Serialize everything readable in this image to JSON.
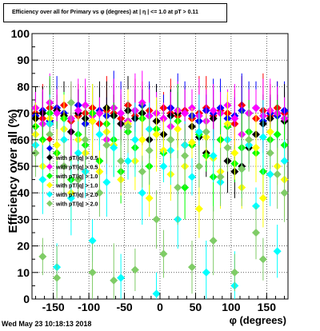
{
  "header": {
    "title": "Efficiency over all for Primary vs φ (degrees) at | η | <= 1.0 at pT > 0.11"
  },
  "footer": {
    "timestamp": "Wed May 23 10:18:13 2018"
  },
  "chart_data": {
    "type": "scatter",
    "title": "Efficiency over all for Primary vs φ (degrees) at | η | <= 1.0 at pT > 0.11",
    "xlabel": "φ (degrees)",
    "ylabel": "Efficiency over all (%)",
    "xlim": [
      -180,
      180
    ],
    "ylim": [
      0,
      100
    ],
    "xticks": [
      -150,
      -100,
      -50,
      0,
      50,
      100,
      150
    ],
    "yticks": [
      0,
      10,
      20,
      30,
      40,
      50,
      60,
      70,
      80,
      90,
      100
    ],
    "grid": true,
    "legend_position": "center-left",
    "legend_labels": [
      "",
      "",
      "with pT/|q| > 0.5",
      "with pT/|q| > 0.5",
      "with pT/|q| > 1.0",
      "with pT/|q| > 1.0",
      "with pT/|q| > 2.0",
      "with pT/|q| > 2.0"
    ],
    "series": [
      {
        "color": "#ff0000",
        "values": [
          70,
          68,
          72,
          71,
          73,
          67,
          69,
          70,
          72,
          66,
          71,
          70,
          68,
          73,
          69,
          70,
          71,
          67,
          72,
          70,
          69,
          71,
          68,
          70,
          72,
          69,
          71,
          70,
          66,
          73,
          70,
          68,
          71,
          69,
          72,
          70
        ]
      },
      {
        "color": "#0000ff",
        "values": [
          69,
          71,
          67,
          72,
          70,
          68,
          73,
          66,
          70,
          71,
          69,
          72,
          70,
          67,
          71,
          73,
          69,
          70,
          68,
          72,
          71,
          70,
          69,
          67,
          71,
          70,
          72,
          68,
          69,
          71,
          70,
          72,
          67,
          70,
          69,
          71
        ]
      },
      {
        "color": "#000000",
        "values": [
          68,
          70,
          66,
          71,
          69,
          63,
          70,
          68,
          67,
          70,
          72,
          69,
          66,
          71,
          68,
          70,
          60,
          67,
          62,
          69,
          70,
          58,
          65,
          61,
          55,
          68,
          60,
          52,
          48,
          50,
          57,
          62,
          66,
          68,
          70,
          67
        ]
      },
      {
        "color": "#ff00ff",
        "values": [
          72,
          66,
          74,
          70,
          50,
          68,
          71,
          73,
          69,
          70,
          60,
          72,
          70,
          67,
          71,
          74,
          69,
          70,
          68,
          65,
          71,
          70,
          72,
          69,
          67,
          71,
          70,
          73,
          68,
          62,
          70,
          72,
          69,
          71,
          70,
          68
        ]
      },
      {
        "color": "#00ff00",
        "values": [
          65,
          60,
          70,
          55,
          68,
          45,
          62,
          58,
          70,
          52,
          66,
          60,
          48,
          63,
          57,
          68,
          50,
          64,
          55,
          60,
          67,
          42,
          58,
          62,
          54,
          46,
          60,
          65,
          51,
          57,
          63,
          55,
          48,
          60,
          62,
          58
        ]
      },
      {
        "color": "#ffff00",
        "values": [
          62,
          50,
          68,
          58,
          64,
          40,
          60,
          55,
          67,
          48,
          63,
          58,
          45,
          66,
          52,
          60,
          38,
          62,
          56,
          47,
          64,
          50,
          59,
          34,
          61,
          53,
          48,
          66,
          55,
          42,
          60,
          57,
          38,
          63,
          50,
          45
        ]
      },
      {
        "color": "#00ffff",
        "values": [
          58,
          45,
          66,
          12,
          60,
          38,
          55,
          48,
          22,
          62,
          44,
          57,
          8,
          52,
          60,
          40,
          64,
          2,
          50,
          56,
          30,
          58,
          46,
          63,
          10,
          54,
          44,
          60,
          5,
          49,
          58,
          35,
          61,
          47,
          18,
          52
        ]
      },
      {
        "color": "#7fcc66",
        "values": [
          55,
          16,
          62,
          8,
          50,
          74,
          45,
          60,
          10,
          40,
          58,
          7,
          52,
          65,
          11,
          48,
          56,
          30,
          17,
          60,
          42,
          54,
          12,
          50,
          63,
          22,
          46,
          57,
          10,
          49,
          60,
          25,
          15,
          55,
          47,
          40
        ]
      }
    ]
  }
}
